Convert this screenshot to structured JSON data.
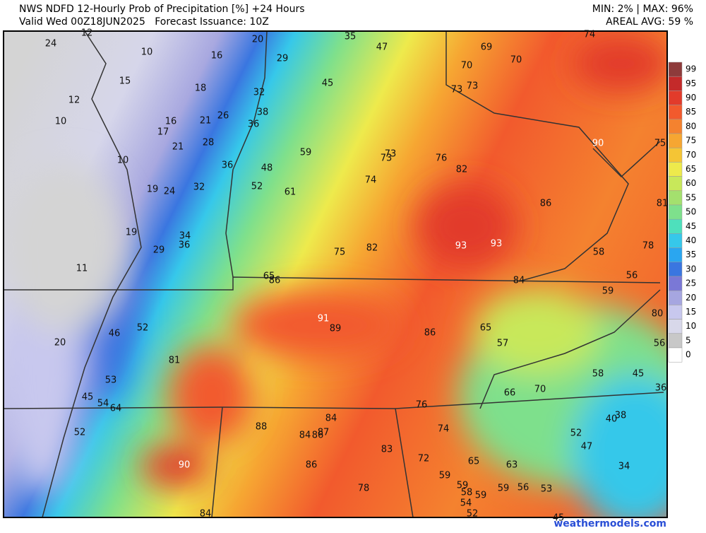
{
  "header": {
    "title": "NWS NDFD 12-Hourly Prob of Precipitation [%] +24 Hours",
    "valid": "Valid Wed 00Z18JUN2025   Forecast Issuance: 10Z",
    "minmax": "MIN: 2% | MAX: 96%",
    "areal_avg": "AREAL AVG: 59 %"
  },
  "legend": [
    {
      "value": 99,
      "color": "#8e3b3b"
    },
    {
      "value": 95,
      "color": "#c42a2a"
    },
    {
      "value": 90,
      "color": "#e23b2b"
    },
    {
      "value": 85,
      "color": "#f25a2d"
    },
    {
      "value": 80,
      "color": "#f4822f"
    },
    {
      "value": 75,
      "color": "#f6a632"
    },
    {
      "value": 70,
      "color": "#f5c535"
    },
    {
      "value": 65,
      "color": "#eeea4c"
    },
    {
      "value": 60,
      "color": "#c8e85a"
    },
    {
      "value": 55,
      "color": "#a4e06e"
    },
    {
      "value": 50,
      "color": "#7ee08c"
    },
    {
      "value": 45,
      "color": "#4ee0bc"
    },
    {
      "value": 40,
      "color": "#36c8ea"
    },
    {
      "value": 35,
      "color": "#2aa6f0"
    },
    {
      "value": 30,
      "color": "#3a76e0"
    },
    {
      "value": 25,
      "color": "#7a78d6"
    },
    {
      "value": 20,
      "color": "#a6a6e0"
    },
    {
      "value": 15,
      "color": "#c8c8ee"
    },
    {
      "value": 10,
      "color": "#d8d8ea"
    },
    {
      "value": 5,
      "color": "#c8c8c8"
    },
    {
      "value": 0,
      "color": "#ffffff"
    }
  ],
  "map_labels": [
    24,
    12,
    10,
    16,
    20,
    35,
    47,
    69,
    74,
    15,
    18,
    29,
    45,
    70,
    70,
    12,
    32,
    73,
    73,
    10,
    16,
    21,
    26,
    38,
    17,
    36,
    21,
    28,
    59,
    73,
    73,
    76,
    90,
    75,
    10,
    36,
    48,
    82,
    19,
    24,
    32,
    52,
    61,
    74,
    86,
    81,
    19,
    34,
    36,
    29,
    93,
    93,
    75,
    82,
    78,
    58,
    11,
    65,
    86,
    56,
    84,
    59,
    91,
    89,
    86,
    65,
    80,
    46,
    52,
    57,
    56,
    20,
    81,
    58,
    45,
    53,
    36,
    66,
    70,
    45,
    54,
    64,
    76,
    38,
    40,
    84,
    88,
    84,
    86,
    87,
    52,
    74,
    52,
    47,
    83,
    72,
    65,
    63,
    90,
    86,
    34,
    59,
    59,
    58,
    59,
    59,
    56,
    53,
    78,
    54,
    84,
    52,
    45
  ],
  "watermark": "weathermodels.com"
}
